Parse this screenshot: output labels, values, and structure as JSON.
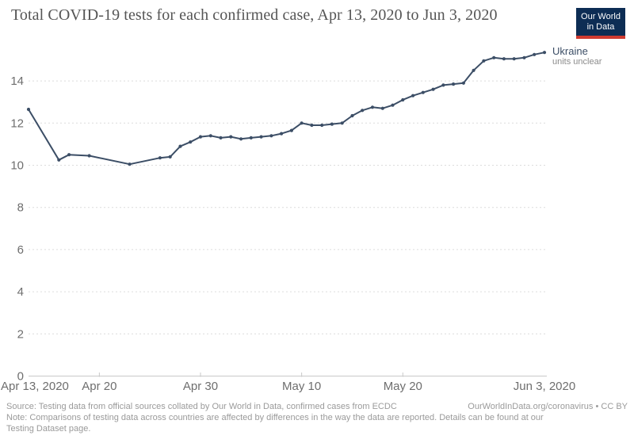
{
  "header": {
    "title": "Total COVID-19 tests for each confirmed case, Apr 13, 2020 to Jun 3, 2020",
    "logo": {
      "line1": "Our World",
      "line2": "in Data"
    }
  },
  "end_label": {
    "name": "Ukraine",
    "note": "units unclear"
  },
  "footer": {
    "source": "Source: Testing data from official sources collated by Our World in Data, confirmed cases from ECDC",
    "link": "OurWorldInData.org/coronavirus • CC BY",
    "note_line1": "Note: Comparisons of testing data across countries are affected by differences in the way the data are reported. Details can be found at our",
    "note_line2": "Testing Dataset page."
  },
  "colors": {
    "series_line": "#3C4E66",
    "grid_dashed": "#dcdcdc",
    "axis_line": "#c8c8c8",
    "axis_text": "#6e6e6e",
    "title_text": "#555555",
    "logo_navy": "#0d2d54",
    "logo_red": "#cf3a30",
    "footer_text": "#9a9a9a"
  },
  "chart_data": {
    "type": "line",
    "title": "Total COVID-19 tests for each confirmed case, Apr 13, 2020 to Jun 3, 2020",
    "xlabel": "",
    "ylabel": "",
    "ylim": [
      0,
      16
    ],
    "grid": "dashed-horizontal",
    "legend_position": "end-of-line-label",
    "y_axis": {
      "ticks": [
        0,
        2,
        4,
        6,
        8,
        10,
        12,
        14
      ]
    },
    "x_axis": {
      "ticks": [
        {
          "label": "Apr 13, 2020",
          "day_offset": 0,
          "tick_mark": false,
          "align": "start"
        },
        {
          "label": "Apr 20",
          "day_offset": 7,
          "tick_mark": true,
          "align": "middle"
        },
        {
          "label": "Apr 30",
          "day_offset": 17,
          "tick_mark": true,
          "align": "middle"
        },
        {
          "label": "May 10",
          "day_offset": 27,
          "tick_mark": true,
          "align": "middle"
        },
        {
          "label": "May 20",
          "day_offset": 37,
          "tick_mark": true,
          "align": "middle"
        },
        {
          "label": "Jun 3, 2020",
          "day_offset": 51,
          "tick_mark": false,
          "align": "middle"
        }
      ],
      "span_days": 51
    },
    "series": [
      {
        "name": "Ukraine",
        "annotation": "units unclear",
        "color": "#3C4E66",
        "points": [
          {
            "date": "Apr 13, 2020",
            "day_offset": 0,
            "value": 12.65
          },
          {
            "date": "Apr 16, 2020",
            "day_offset": 3,
            "value": 10.25
          },
          {
            "date": "Apr 17, 2020",
            "day_offset": 4,
            "value": 10.5
          },
          {
            "date": "Apr 19, 2020",
            "day_offset": 6,
            "value": 10.45
          },
          {
            "date": "Apr 23, 2020",
            "day_offset": 10,
            "value": 10.05
          },
          {
            "date": "Apr 26, 2020",
            "day_offset": 13,
            "value": 10.35
          },
          {
            "date": "Apr 27, 2020",
            "day_offset": 14,
            "value": 10.4
          },
          {
            "date": "Apr 28, 2020",
            "day_offset": 15,
            "value": 10.9
          },
          {
            "date": "Apr 29, 2020",
            "day_offset": 16,
            "value": 11.1
          },
          {
            "date": "Apr 30, 2020",
            "day_offset": 17,
            "value": 11.35
          },
          {
            "date": "May 1, 2020",
            "day_offset": 18,
            "value": 11.4
          },
          {
            "date": "May 2, 2020",
            "day_offset": 19,
            "value": 11.3
          },
          {
            "date": "May 3, 2020",
            "day_offset": 20,
            "value": 11.35
          },
          {
            "date": "May 4, 2020",
            "day_offset": 21,
            "value": 11.25
          },
          {
            "date": "May 5, 2020",
            "day_offset": 22,
            "value": 11.3
          },
          {
            "date": "May 6, 2020",
            "day_offset": 23,
            "value": 11.35
          },
          {
            "date": "May 7, 2020",
            "day_offset": 24,
            "value": 11.4
          },
          {
            "date": "May 8, 2020",
            "day_offset": 25,
            "value": 11.5
          },
          {
            "date": "May 9, 2020",
            "day_offset": 26,
            "value": 11.65
          },
          {
            "date": "May 10, 2020",
            "day_offset": 27,
            "value": 12.0
          },
          {
            "date": "May 11, 2020",
            "day_offset": 28,
            "value": 11.9
          },
          {
            "date": "May 12, 2020",
            "day_offset": 29,
            "value": 11.9
          },
          {
            "date": "May 13, 2020",
            "day_offset": 30,
            "value": 11.95
          },
          {
            "date": "May 14, 2020",
            "day_offset": 31,
            "value": 12.0
          },
          {
            "date": "May 15, 2020",
            "day_offset": 32,
            "value": 12.35
          },
          {
            "date": "May 16, 2020",
            "day_offset": 33,
            "value": 12.6
          },
          {
            "date": "May 17, 2020",
            "day_offset": 34,
            "value": 12.75
          },
          {
            "date": "May 18, 2020",
            "day_offset": 35,
            "value": 12.7
          },
          {
            "date": "May 19, 2020",
            "day_offset": 36,
            "value": 12.85
          },
          {
            "date": "May 20, 2020",
            "day_offset": 37,
            "value": 13.1
          },
          {
            "date": "May 21, 2020",
            "day_offset": 38,
            "value": 13.3
          },
          {
            "date": "May 22, 2020",
            "day_offset": 39,
            "value": 13.45
          },
          {
            "date": "May 23, 2020",
            "day_offset": 40,
            "value": 13.6
          },
          {
            "date": "May 24, 2020",
            "day_offset": 41,
            "value": 13.8
          },
          {
            "date": "May 25, 2020",
            "day_offset": 42,
            "value": 13.85
          },
          {
            "date": "May 26, 2020",
            "day_offset": 43,
            "value": 13.9
          },
          {
            "date": "May 27, 2020",
            "day_offset": 44,
            "value": 14.5
          },
          {
            "date": "May 28, 2020",
            "day_offset": 45,
            "value": 14.95
          },
          {
            "date": "May 29, 2020",
            "day_offset": 46,
            "value": 15.1
          },
          {
            "date": "May 30, 2020",
            "day_offset": 47,
            "value": 15.05
          },
          {
            "date": "May 31, 2020",
            "day_offset": 48,
            "value": 15.05
          },
          {
            "date": "Jun 1, 2020",
            "day_offset": 49,
            "value": 15.1
          },
          {
            "date": "Jun 2, 2020",
            "day_offset": 50,
            "value": 15.25
          },
          {
            "date": "Jun 3, 2020",
            "day_offset": 51,
            "value": 15.35
          }
        ]
      }
    ]
  }
}
